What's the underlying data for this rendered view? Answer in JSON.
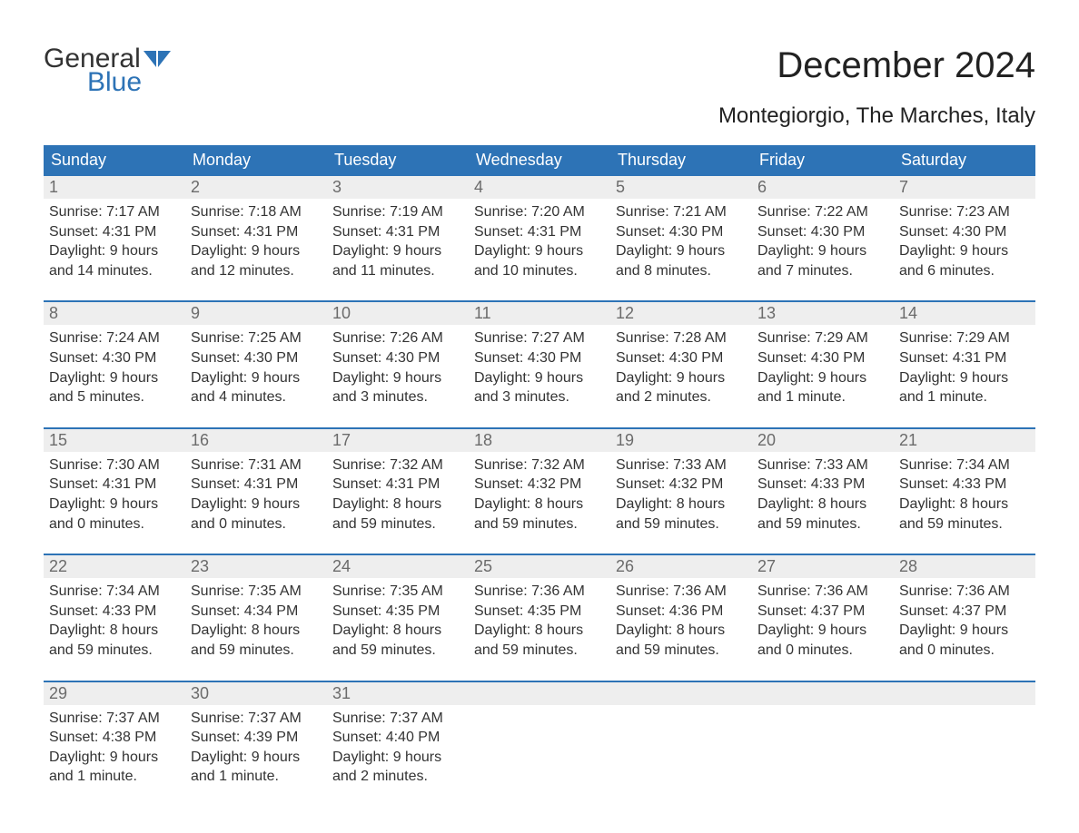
{
  "logo": {
    "general": "General",
    "blue": "Blue"
  },
  "title": "December 2024",
  "subtitle": "Montegiorgio, The Marches, Italy",
  "colors": {
    "header_bg": "#2d73b6",
    "header_text": "#ffffff",
    "daynum_bg": "#eeeeee",
    "daynum_text": "#6b6b6b",
    "body_text": "#333333",
    "week_border": "#2d73b6",
    "logo_blue": "#2d73b6",
    "logo_dark": "#333333",
    "page_bg": "#ffffff"
  },
  "columns": [
    "Sunday",
    "Monday",
    "Tuesday",
    "Wednesday",
    "Thursday",
    "Friday",
    "Saturday"
  ],
  "weeks": [
    [
      {
        "n": "1",
        "sr": "Sunrise: 7:17 AM",
        "ss": "Sunset: 4:31 PM",
        "d1": "Daylight: 9 hours",
        "d2": "and 14 minutes."
      },
      {
        "n": "2",
        "sr": "Sunrise: 7:18 AM",
        "ss": "Sunset: 4:31 PM",
        "d1": "Daylight: 9 hours",
        "d2": "and 12 minutes."
      },
      {
        "n": "3",
        "sr": "Sunrise: 7:19 AM",
        "ss": "Sunset: 4:31 PM",
        "d1": "Daylight: 9 hours",
        "d2": "and 11 minutes."
      },
      {
        "n": "4",
        "sr": "Sunrise: 7:20 AM",
        "ss": "Sunset: 4:31 PM",
        "d1": "Daylight: 9 hours",
        "d2": "and 10 minutes."
      },
      {
        "n": "5",
        "sr": "Sunrise: 7:21 AM",
        "ss": "Sunset: 4:30 PM",
        "d1": "Daylight: 9 hours",
        "d2": "and 8 minutes."
      },
      {
        "n": "6",
        "sr": "Sunrise: 7:22 AM",
        "ss": "Sunset: 4:30 PM",
        "d1": "Daylight: 9 hours",
        "d2": "and 7 minutes."
      },
      {
        "n": "7",
        "sr": "Sunrise: 7:23 AM",
        "ss": "Sunset: 4:30 PM",
        "d1": "Daylight: 9 hours",
        "d2": "and 6 minutes."
      }
    ],
    [
      {
        "n": "8",
        "sr": "Sunrise: 7:24 AM",
        "ss": "Sunset: 4:30 PM",
        "d1": "Daylight: 9 hours",
        "d2": "and 5 minutes."
      },
      {
        "n": "9",
        "sr": "Sunrise: 7:25 AM",
        "ss": "Sunset: 4:30 PM",
        "d1": "Daylight: 9 hours",
        "d2": "and 4 minutes."
      },
      {
        "n": "10",
        "sr": "Sunrise: 7:26 AM",
        "ss": "Sunset: 4:30 PM",
        "d1": "Daylight: 9 hours",
        "d2": "and 3 minutes."
      },
      {
        "n": "11",
        "sr": "Sunrise: 7:27 AM",
        "ss": "Sunset: 4:30 PM",
        "d1": "Daylight: 9 hours",
        "d2": "and 3 minutes."
      },
      {
        "n": "12",
        "sr": "Sunrise: 7:28 AM",
        "ss": "Sunset: 4:30 PM",
        "d1": "Daylight: 9 hours",
        "d2": "and 2 minutes."
      },
      {
        "n": "13",
        "sr": "Sunrise: 7:29 AM",
        "ss": "Sunset: 4:30 PM",
        "d1": "Daylight: 9 hours",
        "d2": "and 1 minute."
      },
      {
        "n": "14",
        "sr": "Sunrise: 7:29 AM",
        "ss": "Sunset: 4:31 PM",
        "d1": "Daylight: 9 hours",
        "d2": "and 1 minute."
      }
    ],
    [
      {
        "n": "15",
        "sr": "Sunrise: 7:30 AM",
        "ss": "Sunset: 4:31 PM",
        "d1": "Daylight: 9 hours",
        "d2": "and 0 minutes."
      },
      {
        "n": "16",
        "sr": "Sunrise: 7:31 AM",
        "ss": "Sunset: 4:31 PM",
        "d1": "Daylight: 9 hours",
        "d2": "and 0 minutes."
      },
      {
        "n": "17",
        "sr": "Sunrise: 7:32 AM",
        "ss": "Sunset: 4:31 PM",
        "d1": "Daylight: 8 hours",
        "d2": "and 59 minutes."
      },
      {
        "n": "18",
        "sr": "Sunrise: 7:32 AM",
        "ss": "Sunset: 4:32 PM",
        "d1": "Daylight: 8 hours",
        "d2": "and 59 minutes."
      },
      {
        "n": "19",
        "sr": "Sunrise: 7:33 AM",
        "ss": "Sunset: 4:32 PM",
        "d1": "Daylight: 8 hours",
        "d2": "and 59 minutes."
      },
      {
        "n": "20",
        "sr": "Sunrise: 7:33 AM",
        "ss": "Sunset: 4:33 PM",
        "d1": "Daylight: 8 hours",
        "d2": "and 59 minutes."
      },
      {
        "n": "21",
        "sr": "Sunrise: 7:34 AM",
        "ss": "Sunset: 4:33 PM",
        "d1": "Daylight: 8 hours",
        "d2": "and 59 minutes."
      }
    ],
    [
      {
        "n": "22",
        "sr": "Sunrise: 7:34 AM",
        "ss": "Sunset: 4:33 PM",
        "d1": "Daylight: 8 hours",
        "d2": "and 59 minutes."
      },
      {
        "n": "23",
        "sr": "Sunrise: 7:35 AM",
        "ss": "Sunset: 4:34 PM",
        "d1": "Daylight: 8 hours",
        "d2": "and 59 minutes."
      },
      {
        "n": "24",
        "sr": "Sunrise: 7:35 AM",
        "ss": "Sunset: 4:35 PM",
        "d1": "Daylight: 8 hours",
        "d2": "and 59 minutes."
      },
      {
        "n": "25",
        "sr": "Sunrise: 7:36 AM",
        "ss": "Sunset: 4:35 PM",
        "d1": "Daylight: 8 hours",
        "d2": "and 59 minutes."
      },
      {
        "n": "26",
        "sr": "Sunrise: 7:36 AM",
        "ss": "Sunset: 4:36 PM",
        "d1": "Daylight: 8 hours",
        "d2": "and 59 minutes."
      },
      {
        "n": "27",
        "sr": "Sunrise: 7:36 AM",
        "ss": "Sunset: 4:37 PM",
        "d1": "Daylight: 9 hours",
        "d2": "and 0 minutes."
      },
      {
        "n": "28",
        "sr": "Sunrise: 7:36 AM",
        "ss": "Sunset: 4:37 PM",
        "d1": "Daylight: 9 hours",
        "d2": "and 0 minutes."
      }
    ],
    [
      {
        "n": "29",
        "sr": "Sunrise: 7:37 AM",
        "ss": "Sunset: 4:38 PM",
        "d1": "Daylight: 9 hours",
        "d2": "and 1 minute."
      },
      {
        "n": "30",
        "sr": "Sunrise: 7:37 AM",
        "ss": "Sunset: 4:39 PM",
        "d1": "Daylight: 9 hours",
        "d2": "and 1 minute."
      },
      {
        "n": "31",
        "sr": "Sunrise: 7:37 AM",
        "ss": "Sunset: 4:40 PM",
        "d1": "Daylight: 9 hours",
        "d2": "and 2 minutes."
      },
      null,
      null,
      null,
      null
    ]
  ]
}
